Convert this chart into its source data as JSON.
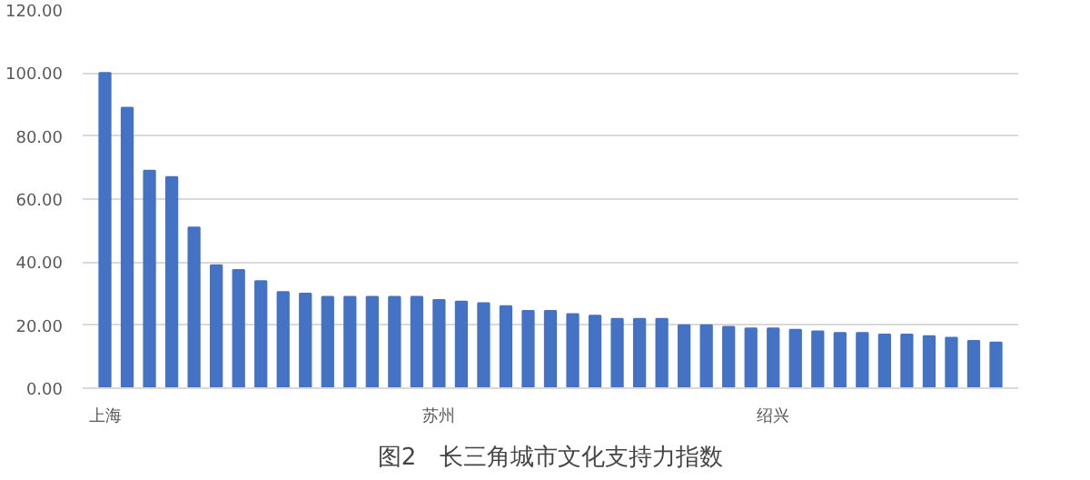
{
  "chart_data": {
    "type": "bar",
    "title": "图2　长三角城市文化支持力指数",
    "categories": [
      "上海",
      null,
      null,
      null,
      null,
      null,
      null,
      null,
      null,
      null,
      null,
      null,
      null,
      null,
      null,
      "苏州",
      null,
      null,
      null,
      null,
      null,
      null,
      null,
      null,
      null,
      null,
      null,
      null,
      null,
      null,
      "绍兴",
      null,
      null,
      null,
      null,
      null,
      null,
      null,
      null,
      null,
      null
    ],
    "values": [
      100,
      89,
      69,
      67,
      51,
      39,
      37.5,
      34,
      30.5,
      30,
      29,
      29,
      29,
      29,
      29,
      28,
      27.5,
      27,
      26,
      24.5,
      24.5,
      23.5,
      23,
      22,
      22,
      22,
      20,
      20,
      19.5,
      19,
      19,
      18.5,
      18,
      17.5,
      17.5,
      17,
      17,
      16.5,
      16,
      15,
      14.5
    ],
    "color": "#4472c4",
    "ylim": [
      0,
      120
    ],
    "yticks": [
      {
        "value": 0,
        "label": "0.00"
      },
      {
        "value": 20,
        "label": "20.00"
      },
      {
        "value": 40,
        "label": "40.00"
      },
      {
        "value": 60,
        "label": "60.00"
      },
      {
        "value": 80,
        "label": "80.00"
      },
      {
        "value": 100,
        "label": "100.00"
      },
      {
        "value": 120,
        "label": "120.00"
      }
    ],
    "grid": "y"
  }
}
